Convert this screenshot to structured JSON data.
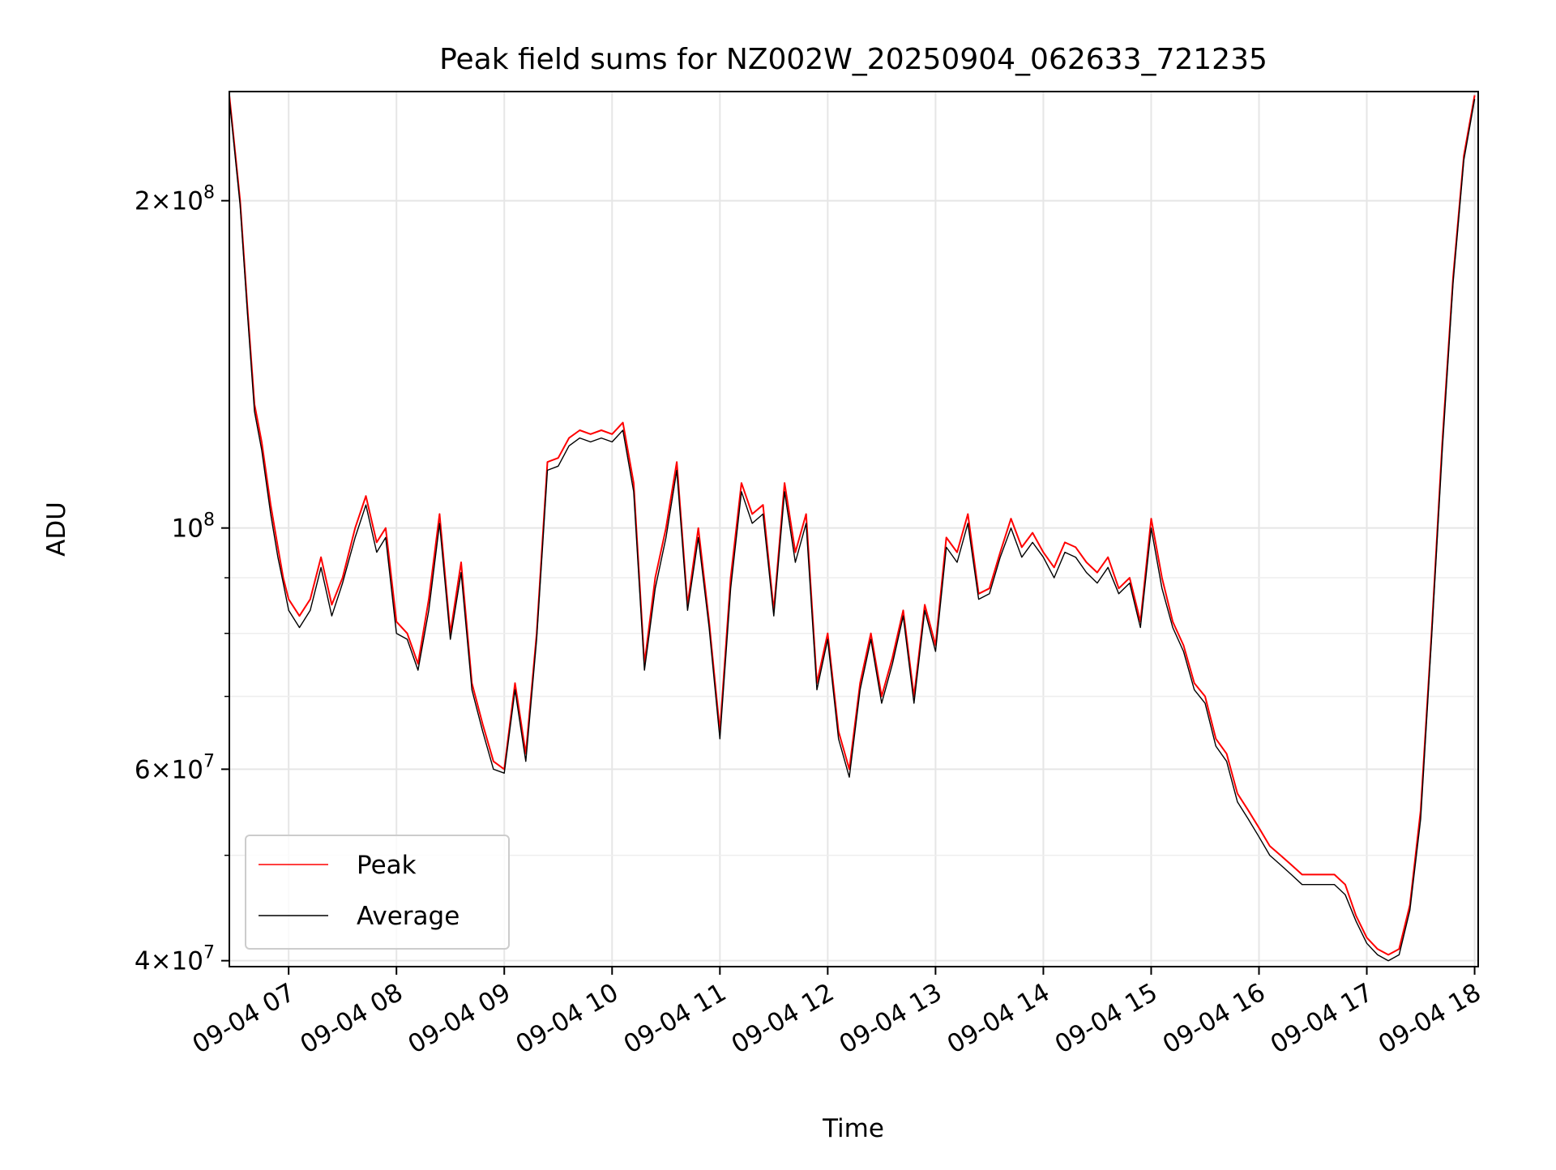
{
  "chart_data": {
    "type": "line",
    "title": "Peak field sums for NZ002W_20250904_062633_721235",
    "xlabel": "Time",
    "ylabel": "ADU",
    "xscale": "time",
    "yscale": "log",
    "xlim": [
      "2025-09-04 06:27",
      "2025-09-04 18:02"
    ],
    "ylim": [
      39500000,
      252000000
    ],
    "x_ticks": [
      {
        "value": "2025-09-04 07:00",
        "label": "09-04 07"
      },
      {
        "value": "2025-09-04 08:00",
        "label": "09-04 08"
      },
      {
        "value": "2025-09-04 09:00",
        "label": "09-04 09"
      },
      {
        "value": "2025-09-04 10:00",
        "label": "09-04 10"
      },
      {
        "value": "2025-09-04 11:00",
        "label": "09-04 11"
      },
      {
        "value": "2025-09-04 12:00",
        "label": "09-04 12"
      },
      {
        "value": "2025-09-04 13:00",
        "label": "09-04 13"
      },
      {
        "value": "2025-09-04 14:00",
        "label": "09-04 14"
      },
      {
        "value": "2025-09-04 15:00",
        "label": "09-04 15"
      },
      {
        "value": "2025-09-04 16:00",
        "label": "09-04 16"
      },
      {
        "value": "2025-09-04 17:00",
        "label": "09-04 17"
      },
      {
        "value": "2025-09-04 18:00",
        "label": "09-04 18"
      }
    ],
    "y_ticks": [
      {
        "value": 40000000,
        "base": "4",
        "exp": "7"
      },
      {
        "value": 60000000,
        "base": "6",
        "exp": "7"
      },
      {
        "value": 100000000,
        "base": "",
        "exp": "8"
      },
      {
        "value": 200000000,
        "base": "2",
        "exp": "8"
      }
    ],
    "y_minor_ticks": [
      50000000,
      70000000,
      80000000,
      90000000
    ],
    "grid": true,
    "legend_position": "lower-left",
    "series": [
      {
        "name": "Peak",
        "color": "#ff0000",
        "x": [
          "2025-09-04 06:27",
          "2025-09-04 06:33",
          "2025-09-04 06:37",
          "2025-09-04 06:41",
          "2025-09-04 06:45",
          "2025-09-04 06:50",
          "2025-09-04 06:54",
          "2025-09-04 06:57",
          "2025-09-04 07:00",
          "2025-09-04 07:06",
          "2025-09-04 07:12",
          "2025-09-04 07:18",
          "2025-09-04 07:24",
          "2025-09-04 07:30",
          "2025-09-04 07:37",
          "2025-09-04 07:43",
          "2025-09-04 07:49",
          "2025-09-04 07:54",
          "2025-09-04 08:00",
          "2025-09-04 08:06",
          "2025-09-04 08:12",
          "2025-09-04 08:18",
          "2025-09-04 08:24",
          "2025-09-04 08:30",
          "2025-09-04 08:36",
          "2025-09-04 08:42",
          "2025-09-04 08:48",
          "2025-09-04 08:54",
          "2025-09-04 09:00",
          "2025-09-04 09:06",
          "2025-09-04 09:12",
          "2025-09-04 09:18",
          "2025-09-04 09:24",
          "2025-09-04 09:30",
          "2025-09-04 09:36",
          "2025-09-04 09:42",
          "2025-09-04 09:48",
          "2025-09-04 09:54",
          "2025-09-04 10:00",
          "2025-09-04 10:06",
          "2025-09-04 10:12",
          "2025-09-04 10:18",
          "2025-09-04 10:24",
          "2025-09-04 10:30",
          "2025-09-04 10:36",
          "2025-09-04 10:42",
          "2025-09-04 10:48",
          "2025-09-04 10:54",
          "2025-09-04 11:00",
          "2025-09-04 11:06",
          "2025-09-04 11:12",
          "2025-09-04 11:18",
          "2025-09-04 11:24",
          "2025-09-04 11:30",
          "2025-09-04 11:36",
          "2025-09-04 11:42",
          "2025-09-04 11:48",
          "2025-09-04 11:54",
          "2025-09-04 12:00",
          "2025-09-04 12:06",
          "2025-09-04 12:12",
          "2025-09-04 12:18",
          "2025-09-04 12:24",
          "2025-09-04 12:30",
          "2025-09-04 12:36",
          "2025-09-04 12:42",
          "2025-09-04 12:48",
          "2025-09-04 12:54",
          "2025-09-04 13:00",
          "2025-09-04 13:06",
          "2025-09-04 13:12",
          "2025-09-04 13:18",
          "2025-09-04 13:24",
          "2025-09-04 13:30",
          "2025-09-04 13:36",
          "2025-09-04 13:42",
          "2025-09-04 13:48",
          "2025-09-04 13:54",
          "2025-09-04 14:00",
          "2025-09-04 14:06",
          "2025-09-04 14:12",
          "2025-09-04 14:18",
          "2025-09-04 14:24",
          "2025-09-04 14:30",
          "2025-09-04 14:36",
          "2025-09-04 14:42",
          "2025-09-04 14:48",
          "2025-09-04 14:54",
          "2025-09-04 15:00",
          "2025-09-04 15:06",
          "2025-09-04 15:12",
          "2025-09-04 15:18",
          "2025-09-04 15:24",
          "2025-09-04 15:30",
          "2025-09-04 15:36",
          "2025-09-04 15:42",
          "2025-09-04 15:48",
          "2025-09-04 15:54",
          "2025-09-04 16:00",
          "2025-09-04 16:06",
          "2025-09-04 16:12",
          "2025-09-04 16:18",
          "2025-09-04 16:24",
          "2025-09-04 16:30",
          "2025-09-04 16:36",
          "2025-09-04 16:42",
          "2025-09-04 16:48",
          "2025-09-04 16:54",
          "2025-09-04 17:00",
          "2025-09-04 17:06",
          "2025-09-04 17:12",
          "2025-09-04 17:18",
          "2025-09-04 17:24",
          "2025-09-04 17:30",
          "2025-09-04 17:36",
          "2025-09-04 17:42",
          "2025-09-04 17:48",
          "2025-09-04 17:54",
          "2025-09-04 18:00"
        ],
        "values": [
          250000000,
          200000000,
          160000000,
          130000000,
          120000000,
          105000000,
          96000000,
          90000000,
          86000000,
          83000000,
          86000000,
          94000000,
          85000000,
          90000000,
          100000000,
          107000000,
          97000000,
          100000000,
          82000000,
          80000000,
          75000000,
          86000000,
          103000000,
          80000000,
          93000000,
          72000000,
          66000000,
          61000000,
          60000000,
          72000000,
          62000000,
          80000000,
          115000000,
          116000000,
          121000000,
          123000000,
          122000000,
          123000000,
          122000000,
          125000000,
          110000000,
          75000000,
          90000000,
          100000000,
          115000000,
          85000000,
          100000000,
          82000000,
          65000000,
          90000000,
          110000000,
          103000000,
          105000000,
          84000000,
          110000000,
          95000000,
          103000000,
          72000000,
          80000000,
          65000000,
          60000000,
          72000000,
          80000000,
          70000000,
          76000000,
          84000000,
          70000000,
          85000000,
          78000000,
          98000000,
          95000000,
          103000000,
          87000000,
          88000000,
          95000000,
          102000000,
          96000000,
          99000000,
          95000000,
          92000000,
          97000000,
          96000000,
          93000000,
          91000000,
          94000000,
          88000000,
          90000000,
          82000000,
          102000000,
          90000000,
          82000000,
          78000000,
          72000000,
          70000000,
          64000000,
          62000000,
          57000000,
          55000000,
          53000000,
          51000000,
          50000000,
          49000000,
          48000000,
          48000000,
          48000000,
          48000000,
          47000000,
          44000000,
          42000000,
          41000000,
          40500000,
          41000000,
          45000000,
          55000000,
          80000000,
          120000000,
          170000000,
          220000000,
          250000000
        ]
      },
      {
        "name": "Average",
        "color": "#000000",
        "x": [
          "2025-09-04 06:27",
          "2025-09-04 06:33",
          "2025-09-04 06:37",
          "2025-09-04 06:41",
          "2025-09-04 06:45",
          "2025-09-04 06:50",
          "2025-09-04 06:54",
          "2025-09-04 06:57",
          "2025-09-04 07:00",
          "2025-09-04 07:06",
          "2025-09-04 07:12",
          "2025-09-04 07:18",
          "2025-09-04 07:24",
          "2025-09-04 07:30",
          "2025-09-04 07:37",
          "2025-09-04 07:43",
          "2025-09-04 07:49",
          "2025-09-04 07:54",
          "2025-09-04 08:00",
          "2025-09-04 08:06",
          "2025-09-04 08:12",
          "2025-09-04 08:18",
          "2025-09-04 08:24",
          "2025-09-04 08:30",
          "2025-09-04 08:36",
          "2025-09-04 08:42",
          "2025-09-04 08:48",
          "2025-09-04 08:54",
          "2025-09-04 09:00",
          "2025-09-04 09:06",
          "2025-09-04 09:12",
          "2025-09-04 09:18",
          "2025-09-04 09:24",
          "2025-09-04 09:30",
          "2025-09-04 09:36",
          "2025-09-04 09:42",
          "2025-09-04 09:48",
          "2025-09-04 09:54",
          "2025-09-04 10:00",
          "2025-09-04 10:06",
          "2025-09-04 10:12",
          "2025-09-04 10:18",
          "2025-09-04 10:24",
          "2025-09-04 10:30",
          "2025-09-04 10:36",
          "2025-09-04 10:42",
          "2025-09-04 10:48",
          "2025-09-04 10:54",
          "2025-09-04 11:00",
          "2025-09-04 11:06",
          "2025-09-04 11:12",
          "2025-09-04 11:18",
          "2025-09-04 11:24",
          "2025-09-04 11:30",
          "2025-09-04 11:36",
          "2025-09-04 11:42",
          "2025-09-04 11:48",
          "2025-09-04 11:54",
          "2025-09-04 12:00",
          "2025-09-04 12:06",
          "2025-09-04 12:12",
          "2025-09-04 12:18",
          "2025-09-04 12:24",
          "2025-09-04 12:30",
          "2025-09-04 12:36",
          "2025-09-04 12:42",
          "2025-09-04 12:48",
          "2025-09-04 12:54",
          "2025-09-04 13:00",
          "2025-09-04 13:06",
          "2025-09-04 13:12",
          "2025-09-04 13:18",
          "2025-09-04 13:24",
          "2025-09-04 13:30",
          "2025-09-04 13:36",
          "2025-09-04 13:42",
          "2025-09-04 13:48",
          "2025-09-04 13:54",
          "2025-09-04 14:00",
          "2025-09-04 14:06",
          "2025-09-04 14:12",
          "2025-09-04 14:18",
          "2025-09-04 14:24",
          "2025-09-04 14:30",
          "2025-09-04 14:36",
          "2025-09-04 14:42",
          "2025-09-04 14:48",
          "2025-09-04 14:54",
          "2025-09-04 15:00",
          "2025-09-04 15:06",
          "2025-09-04 15:12",
          "2025-09-04 15:18",
          "2025-09-04 15:24",
          "2025-09-04 15:30",
          "2025-09-04 15:36",
          "2025-09-04 15:42",
          "2025-09-04 15:48",
          "2025-09-04 15:54",
          "2025-09-04 16:00",
          "2025-09-04 16:06",
          "2025-09-04 16:12",
          "2025-09-04 16:18",
          "2025-09-04 16:24",
          "2025-09-04 16:30",
          "2025-09-04 16:36",
          "2025-09-04 16:42",
          "2025-09-04 16:48",
          "2025-09-04 16:54",
          "2025-09-04 17:00",
          "2025-09-04 17:06",
          "2025-09-04 17:12",
          "2025-09-04 17:18",
          "2025-09-04 17:24",
          "2025-09-04 17:30",
          "2025-09-04 17:36",
          "2025-09-04 17:42",
          "2025-09-04 17:48",
          "2025-09-04 17:54",
          "2025-09-04 18:00"
        ],
        "values": [
          248000000,
          198000000,
          158000000,
          128000000,
          118000000,
          103000000,
          94000000,
          89000000,
          84000000,
          81000000,
          84000000,
          92000000,
          83000000,
          89000000,
          98000000,
          105000000,
          95000000,
          98000000,
          80000000,
          79000000,
          74000000,
          84000000,
          101000000,
          79000000,
          91000000,
          71000000,
          65000000,
          60000000,
          59500000,
          71000000,
          61000000,
          79000000,
          113000000,
          114000000,
          119000000,
          121000000,
          120000000,
          121000000,
          120000000,
          123000000,
          108000000,
          74000000,
          88000000,
          98000000,
          113000000,
          84000000,
          98000000,
          81000000,
          64000000,
          88000000,
          108000000,
          101000000,
          103000000,
          83000000,
          108000000,
          93000000,
          101000000,
          71000000,
          79000000,
          64000000,
          59000000,
          71000000,
          79000000,
          69000000,
          75000000,
          83000000,
          69000000,
          84000000,
          77000000,
          96000000,
          93000000,
          101000000,
          86000000,
          87000000,
          94000000,
          100000000,
          94000000,
          97000000,
          94000000,
          90000000,
          95000000,
          94000000,
          91000000,
          89000000,
          92000000,
          87000000,
          89000000,
          81000000,
          100000000,
          88000000,
          81000000,
          77000000,
          71000000,
          69000000,
          63000000,
          61000000,
          56000000,
          54000000,
          52000000,
          50000000,
          49000000,
          48000000,
          47000000,
          47000000,
          47000000,
          47000000,
          46000000,
          43500000,
          41500000,
          40500000,
          40000000,
          40500000,
          44500000,
          54000000,
          79000000,
          118000000,
          168000000,
          218000000,
          248000000
        ]
      }
    ]
  }
}
